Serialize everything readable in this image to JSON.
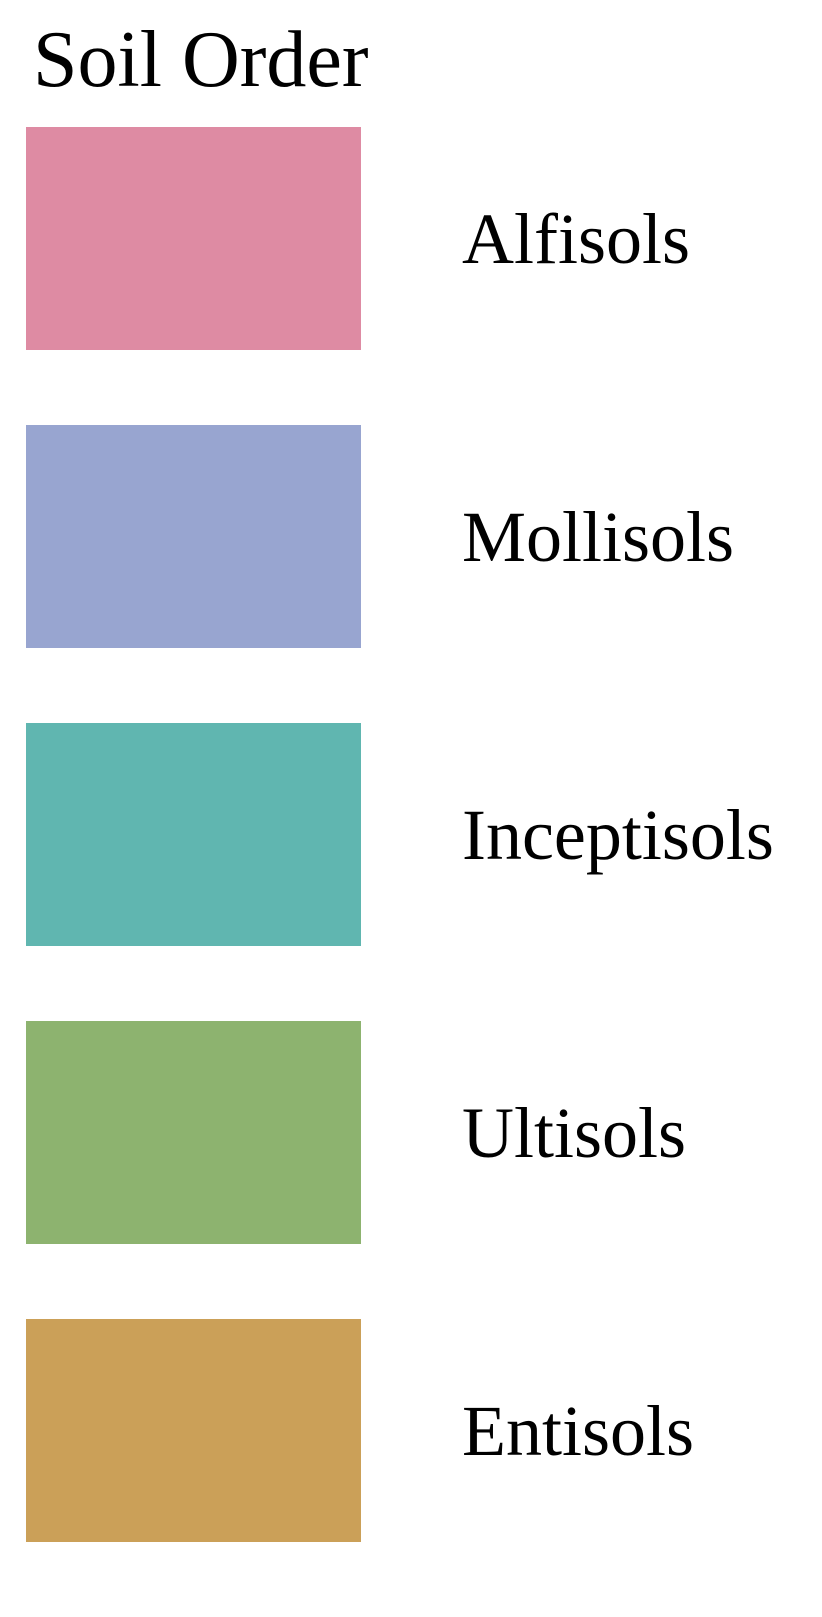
{
  "legend": {
    "title": "Soil Order",
    "items": [
      {
        "label": "Alfisols",
        "color": "#de8ba3"
      },
      {
        "label": "Mollisols",
        "color": "#98a5d0"
      },
      {
        "label": "Inceptisols",
        "color": "#60b6b0"
      },
      {
        "label": "Ultisols",
        "color": "#8db36f"
      },
      {
        "label": "Entisols",
        "color": "#cba058"
      }
    ]
  }
}
